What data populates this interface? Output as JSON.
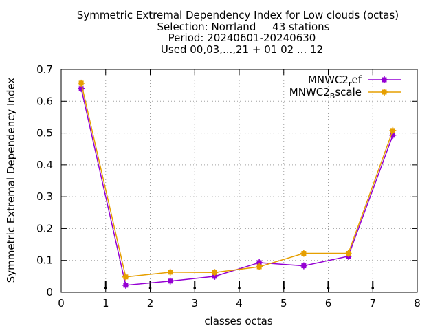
{
  "chart_data": {
    "type": "line",
    "title": "Symmetric Extremal Dependency Index  for Low clouds (octas)",
    "subtitle_lines": [
      "Selection: Norrland     43 stations",
      "Period: 20240601-20240630",
      "Used 00,03,...,21 + 01 02 ... 12"
    ],
    "xlabel": "classes octas",
    "ylabel": "Symmetric Extremal Dependency Index",
    "xlim": [
      0,
      8
    ],
    "ylim": [
      0,
      0.7
    ],
    "x_ticks": [
      "0",
      "1",
      "2",
      "3",
      "4",
      "5",
      "6",
      "7",
      "8"
    ],
    "y_ticks": [
      "0",
      "0.1",
      "0.2",
      "0.3",
      "0.4",
      "0.5",
      "0.6",
      "0.7"
    ],
    "grid": true,
    "legend_position": "top-right",
    "x": [
      0.45,
      1.45,
      2.45,
      3.45,
      4.45,
      5.45,
      6.45,
      7.45
    ],
    "series": [
      {
        "name": "MNWC2_ref",
        "legend_main": "MNWC2",
        "legend_sub": "r",
        "legend_tail": "ef",
        "color": "#9400d3",
        "values": [
          0.64,
          0.022,
          0.035,
          0.05,
          0.093,
          0.083,
          0.113,
          0.493
        ]
      },
      {
        "name": "MNWC2_Bscale",
        "legend_main": "MNWC2",
        "legend_sub": "B",
        "legend_tail": "scale",
        "color": "#e69f00",
        "values": [
          0.657,
          0.048,
          0.063,
          0.062,
          0.08,
          0.122,
          0.122,
          0.508
        ]
      }
    ],
    "bottom_markers_x": [
      1,
      2,
      3,
      4,
      5,
      6,
      7
    ]
  }
}
